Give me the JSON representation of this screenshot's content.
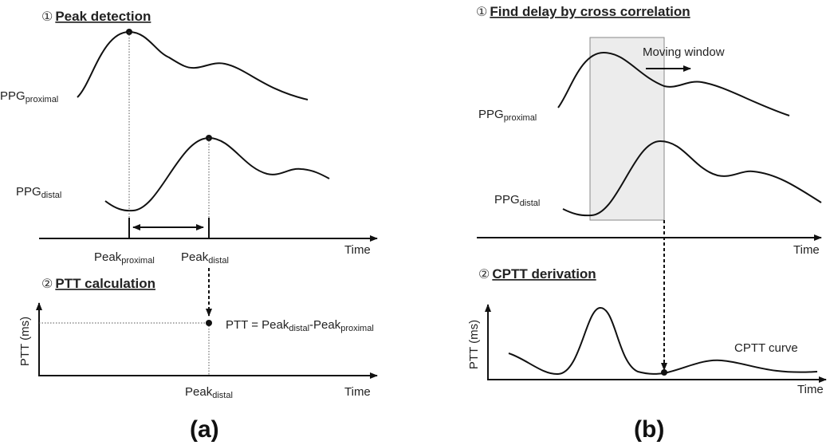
{
  "panel_a": {
    "label": "(a)",
    "step1": {
      "number": "①",
      "title": "Peak detection"
    },
    "ppg_proximal": {
      "base": "PPG",
      "sub": "proximal"
    },
    "ppg_distal": {
      "base": "PPG",
      "sub": "distal"
    },
    "time_label": "Time",
    "peak_proximal": {
      "base": "Peak",
      "sub": "proximal"
    },
    "peak_distal": {
      "base": "Peak",
      "sub": "distal"
    },
    "step2": {
      "number": "②",
      "title": "PTT calculation"
    },
    "y_label": "PTT (ms)",
    "formula": {
      "prefix": "PTT = Peak",
      "sub1": "distal",
      "mid": "-Peak",
      "sub2": "proximal"
    },
    "bottom_peak_distal": {
      "base": "Peak",
      "sub": "distal"
    },
    "bottom_time_label": "Time"
  },
  "panel_b": {
    "label": "(b)",
    "step1": {
      "number": "①",
      "title": "Find delay by cross correlation"
    },
    "moving_window": "Moving window",
    "ppg_proximal": {
      "base": "PPG",
      "sub": "proximal"
    },
    "ppg_distal": {
      "base": "PPG",
      "sub": "distal"
    },
    "time_label": "Time",
    "step2": {
      "number": "②",
      "title": "CPTT derivation"
    },
    "y_label": "PTT (ms)",
    "curve_label": "CPTT curve",
    "bottom_time_label": "Time"
  },
  "colors": {
    "window_fill": "#ececec",
    "window_stroke": "#888888",
    "line": "#111111"
  }
}
